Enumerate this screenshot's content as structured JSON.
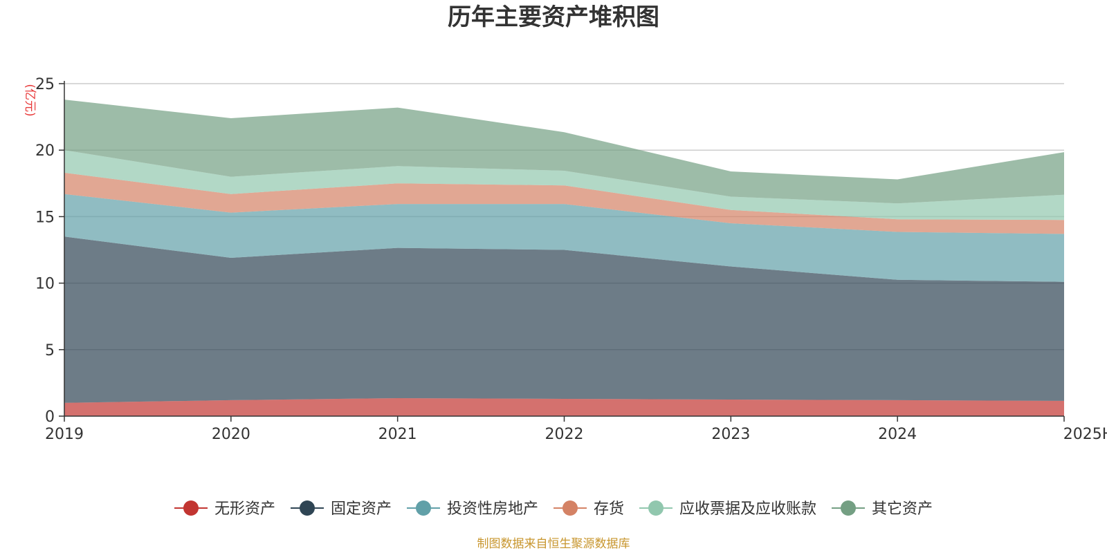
{
  "chart_data": {
    "type": "area",
    "stacked": true,
    "title": "历年主要资产堆积图",
    "unit_label": "(亿元)",
    "categories": [
      "2019",
      "2020",
      "2021",
      "2022",
      "2023",
      "2024",
      "2025H1"
    ],
    "ylim": [
      0,
      25
    ],
    "yticks": [
      "0",
      "5",
      "10",
      "15",
      "20",
      "25"
    ],
    "grid": true,
    "legend_position": "bottom",
    "series": [
      {
        "name": "无形资产",
        "color": "#c23531",
        "values": [
          1.0,
          1.2,
          1.35,
          1.3,
          1.25,
          1.2,
          1.15
        ]
      },
      {
        "name": "固定资产",
        "color": "#2f4554",
        "values": [
          12.5,
          10.7,
          11.3,
          11.2,
          10.0,
          9.05,
          8.95
        ]
      },
      {
        "name": "投资性房地产",
        "color": "#61a0a8",
        "values": [
          3.2,
          3.4,
          3.3,
          3.45,
          3.25,
          3.6,
          3.6
        ]
      },
      {
        "name": "存货",
        "color": "#d48265",
        "values": [
          1.6,
          1.4,
          1.55,
          1.4,
          1.0,
          0.95,
          1.05
        ]
      },
      {
        "name": "应收票据及应收账款",
        "color": "#91c7ae",
        "values": [
          1.7,
          1.3,
          1.3,
          1.1,
          1.0,
          1.2,
          1.9
        ]
      },
      {
        "name": "其它资产",
        "color": "#749f83",
        "values": [
          3.8,
          4.4,
          4.4,
          2.9,
          1.9,
          1.8,
          3.2
        ]
      }
    ],
    "source_note": "制图数据来自恒生聚源数据库"
  }
}
